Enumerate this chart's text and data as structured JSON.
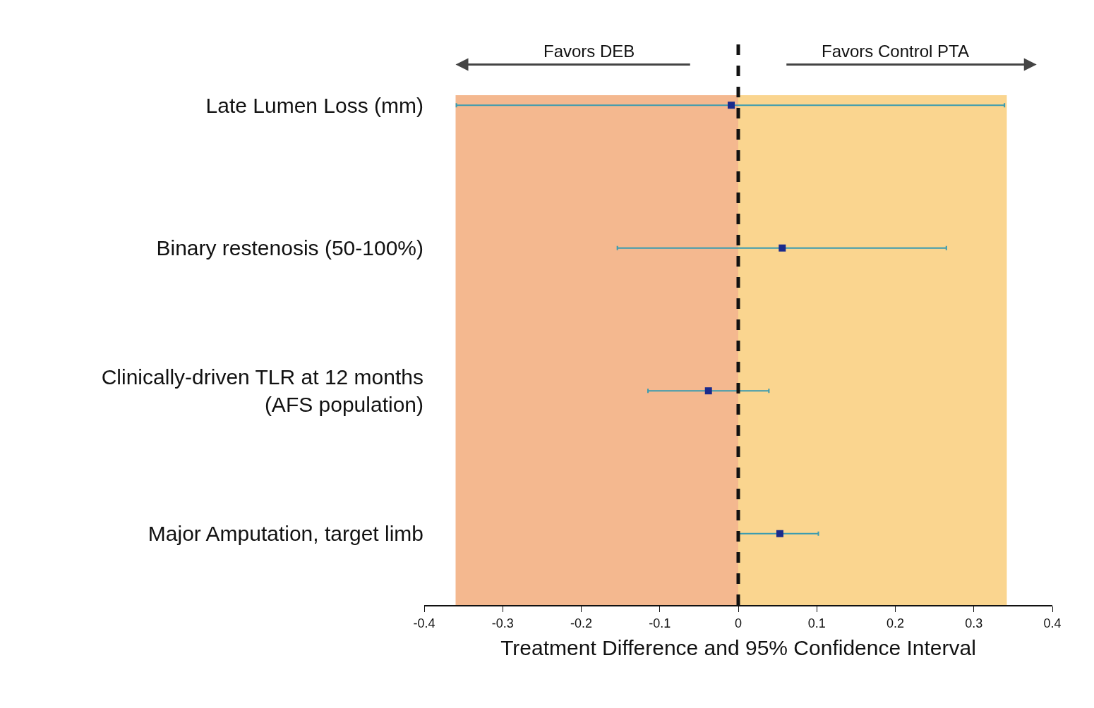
{
  "chart_data": {
    "type": "scatter",
    "categories": [
      "Late Lumen Loss (mm)",
      "Binary restenosis (50-100%)",
      "Clinically-driven TLR at 12 months\n(AFS population)",
      "Major Amputation, target limb"
    ],
    "values": [
      -0.009,
      0.056,
      -0.038,
      0.053
    ],
    "errors": [
      [
        -0.359,
        0.339
      ],
      [
        -0.154,
        0.265
      ],
      [
        -0.115,
        0.039
      ],
      [
        0.0,
        0.102
      ]
    ],
    "color": "#1a2a8c",
    "marker": "square",
    "orientation": "horizontal",
    "xlabel": "Treatment Difference and 95% Confidence Interval",
    "xlim": [
      -0.4,
      0.4
    ],
    "xticks": [
      -0.4,
      -0.3,
      -0.2,
      -0.1,
      0,
      0.1,
      0.2,
      0.3,
      0.4
    ],
    "ref_lines": [
      {
        "axis": "x",
        "value": 0,
        "line_style": "dashed",
        "color": "#111111"
      }
    ],
    "bands": [
      {
        "axis": "x",
        "from": -0.36,
        "to": 0,
        "color": "#f4b88f"
      },
      {
        "axis": "x",
        "from": 0,
        "to": 0.342,
        "color": "#fad58f"
      }
    ],
    "annotations": [
      "Favors DEB",
      "Favors Control PTA"
    ]
  }
}
